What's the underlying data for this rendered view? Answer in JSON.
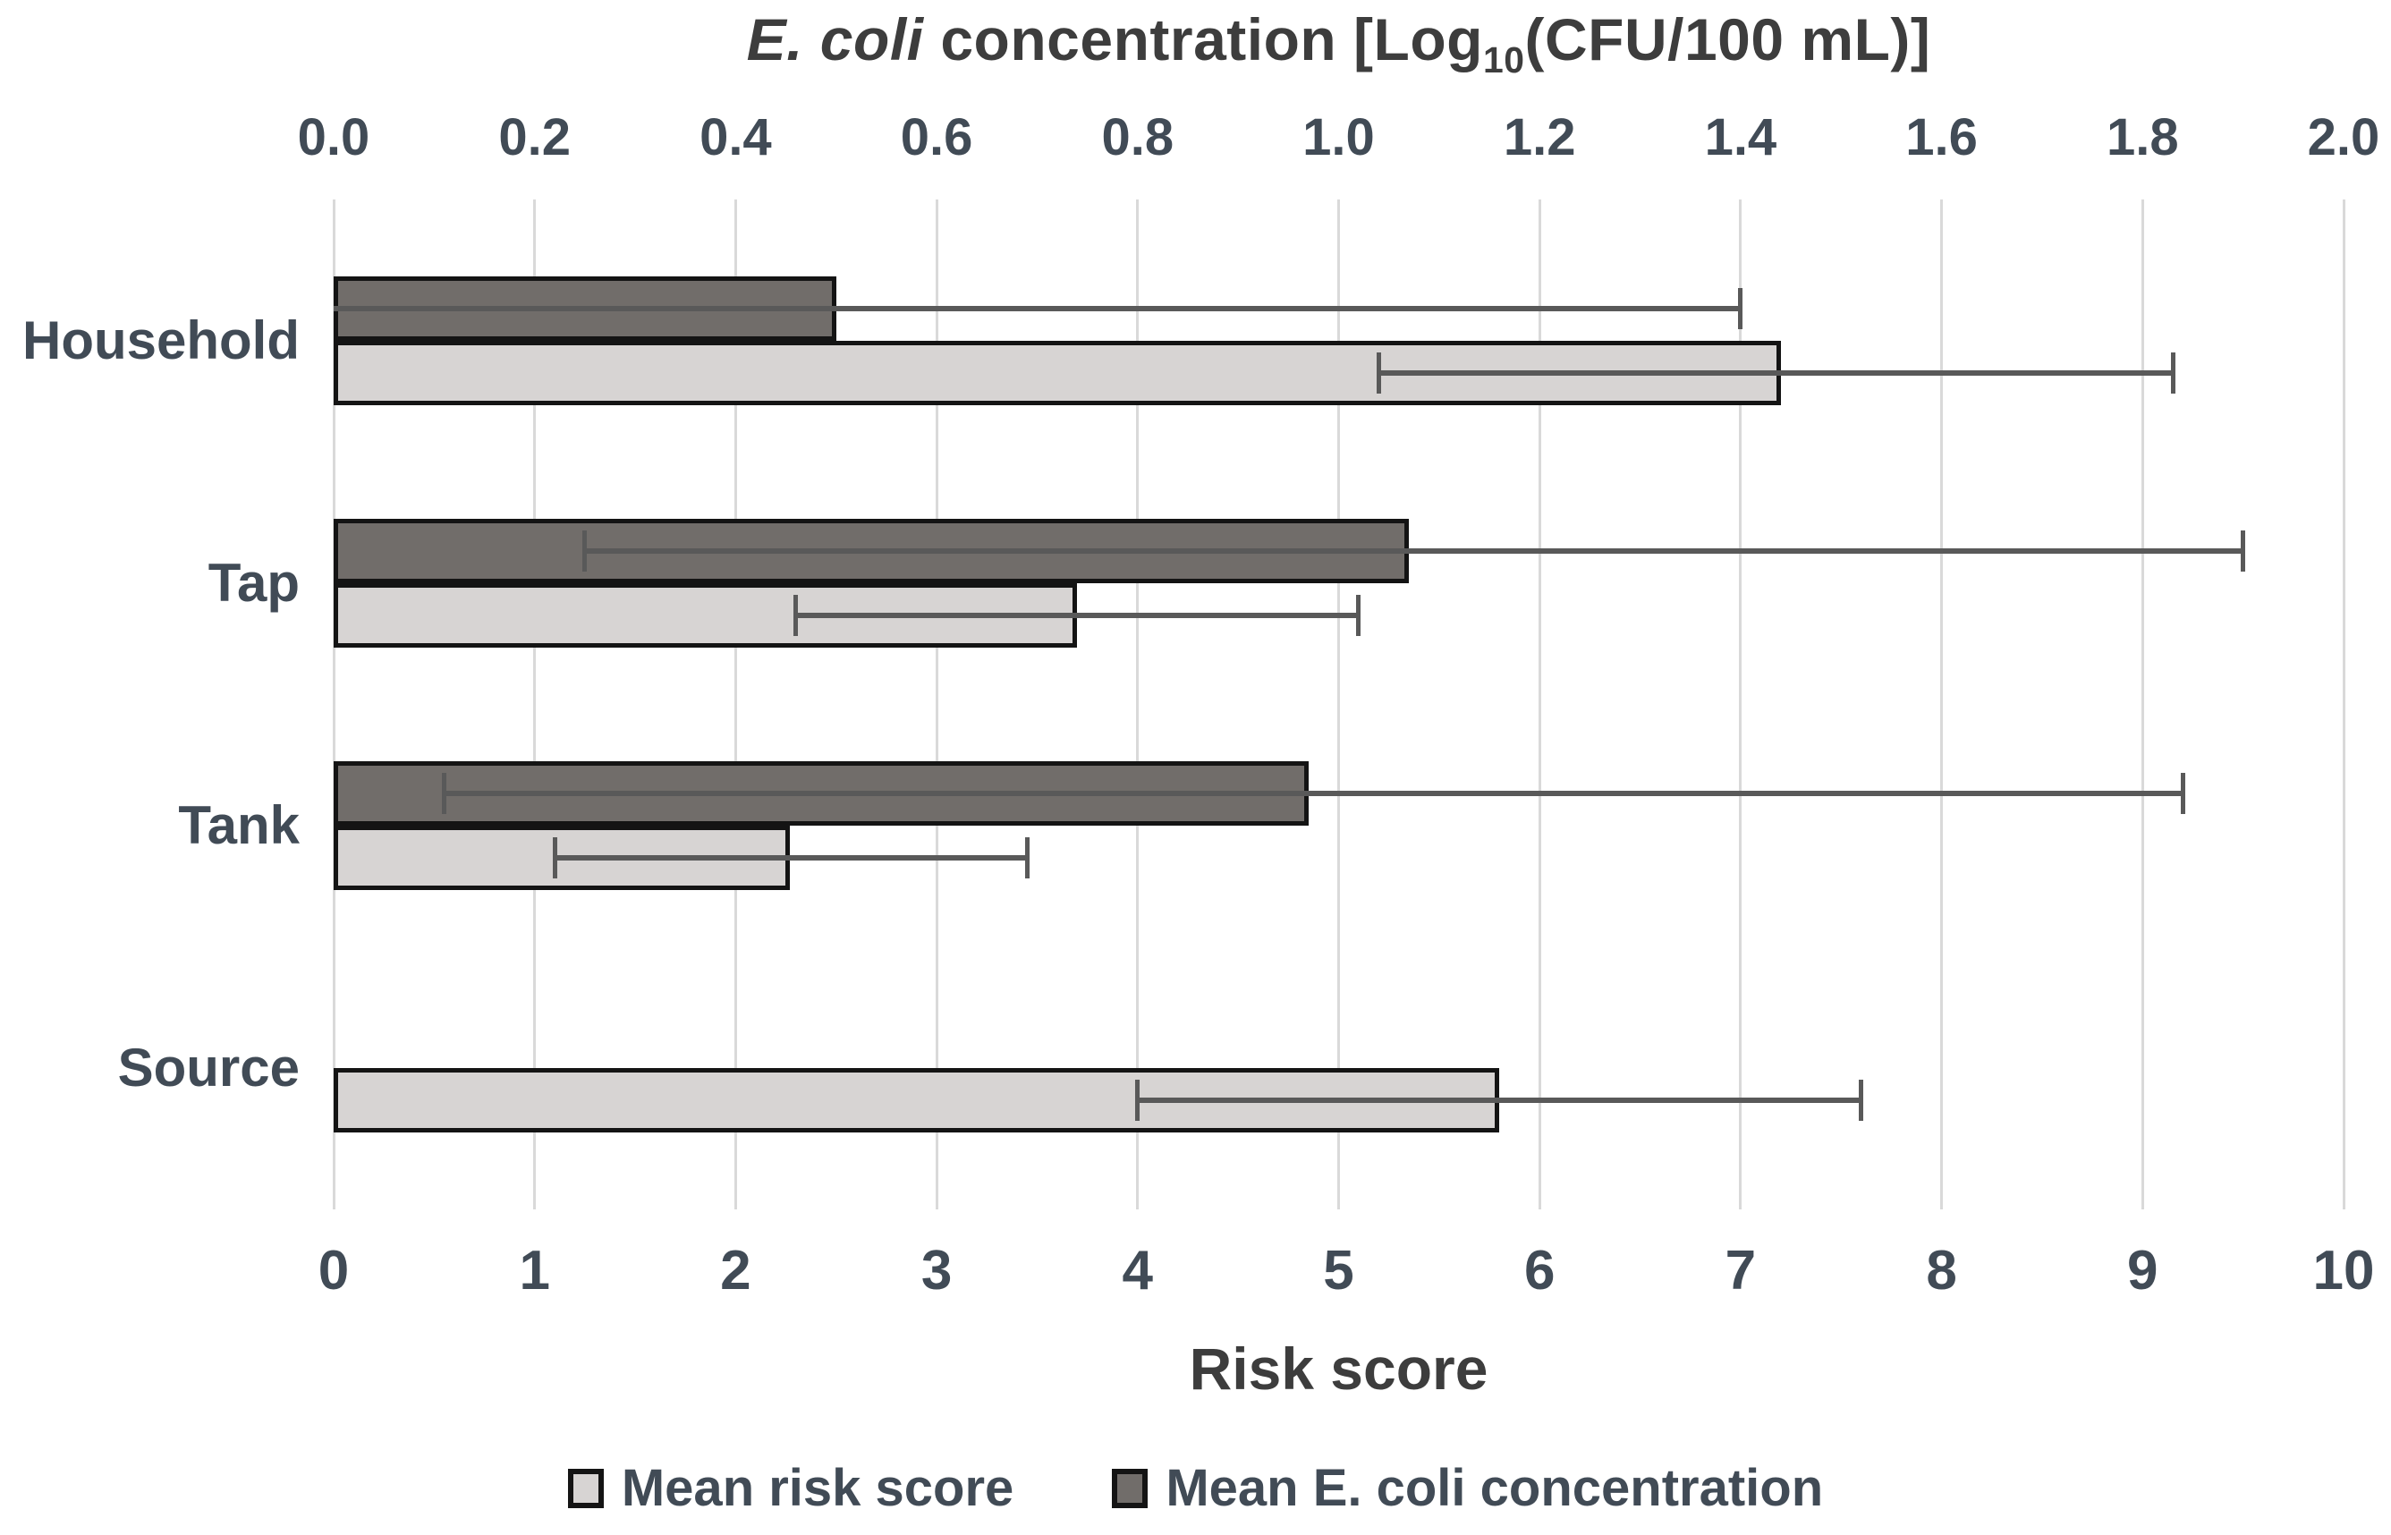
{
  "chart_data": {
    "type": "bar",
    "orientation": "horizontal",
    "top_axis": {
      "title_italic": "E. coli",
      "title_mid": " concentration [Log",
      "title_sub": "10",
      "title_tail": "(CFU/100 mL)]",
      "min": 0.0,
      "max": 2.0,
      "ticks": [
        "0.0",
        "0.2",
        "0.4",
        "0.6",
        "0.8",
        "1.0",
        "1.2",
        "1.4",
        "1.6",
        "1.8",
        "2.0"
      ]
    },
    "bottom_axis": {
      "title": "Risk score",
      "min": 0,
      "max": 10,
      "ticks": [
        "0",
        "1",
        "2",
        "3",
        "4",
        "5",
        "6",
        "7",
        "8",
        "9",
        "10"
      ]
    },
    "categories": [
      "Household",
      "Tap",
      "Tank",
      "Source"
    ],
    "series": [
      {
        "name": "Mean risk score",
        "axis": "bottom",
        "slot": "lower",
        "color": "#d7d4d3",
        "values": [
          7.2,
          3.7,
          2.27,
          5.8
        ],
        "error_low": [
          5.2,
          2.3,
          1.1,
          4.0
        ],
        "error_high": [
          9.15,
          5.1,
          3.45,
          7.6
        ],
        "low_cap": [
          true,
          true,
          true,
          true
        ],
        "high_cap": [
          true,
          true,
          true,
          true
        ]
      },
      {
        "name": "Mean E. coli concentration",
        "axis": "top",
        "slot": "upper",
        "color": "#716d6a",
        "values": [
          0.5,
          1.07,
          0.97,
          null
        ],
        "error_low": [
          0,
          0.25,
          0.11,
          null
        ],
        "error_high": [
          1.4,
          1.9,
          1.84,
          null
        ],
        "low_cap": [
          false,
          true,
          true,
          false
        ],
        "high_cap": [
          true,
          true,
          true,
          false
        ]
      }
    ],
    "legend_position": "bottom",
    "grid": true,
    "colors": {
      "bar_light": "#d7d4d3",
      "bar_dark": "#716d6a",
      "bar_border": "#141414",
      "error_bar": "#595959",
      "gridline": "#d9d9d9",
      "axis_text": "#414b56",
      "title_text": "#3d3d3d"
    }
  }
}
